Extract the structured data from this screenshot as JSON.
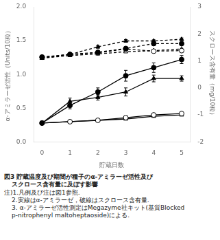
{
  "chart_data": {
    "type": "line",
    "title": [
      "図3 貯蔵温度及び期間が種子のα-アミラーゼ活性及び",
      "スクロース含有量に及ぼす影響"
    ],
    "annotations": [
      "注)1.凡例及び注は図1参照.",
      "2.実線はα-アミラーゼ，破線はスクロース含有量.",
      "3. α-アミラーゼ活性測定はMegazyme社キット(基質Blocked",
      "p-nitrophenyl maltoheptaoside)による."
    ],
    "x_label": "貯蔵日数",
    "y_label": "α-アミラーゼ活性（Units/10粒）",
    "y2_label": "スクロース含有量（mg/10粒）",
    "x": [
      0,
      1,
      2,
      3,
      4,
      5
    ],
    "xlim": [
      -0.3,
      5.3
    ],
    "xticks": [
      0,
      1,
      2,
      3,
      4,
      5
    ],
    "ylim": [
      0.0,
      2.0
    ],
    "yticks": [
      {
        "value": 0,
        "label": "0.0"
      },
      0.5,
      {
        "value": 1,
        "label": "1.0"
      },
      1.5,
      {
        "value": 2,
        "label": "2.0"
      }
    ],
    "y2lim": [
      -2.0,
      3.0
    ],
    "y2ticks": [
      -2,
      -1,
      0,
      1,
      2,
      3
    ],
    "grid": false,
    "series": [
      {
        "values": [
          0.28,
          0.54,
          0.74,
          0.98,
          1.1,
          1.22
        ],
        "errors": [
          0.02,
          0.05,
          0.06,
          0.08,
          0.07,
          0.06
        ],
        "color": "#000000",
        "marker": "circle",
        "line_style": "solid"
      },
      {
        "values": [
          0.28,
          0.6,
          0.66,
          0.74,
          0.94,
          0.94
        ],
        "errors": [
          0.02,
          0.05,
          0.04,
          0.06,
          0.05,
          0.04
        ],
        "color": "#000000",
        "marker": "triangle",
        "line_style": "solid"
      },
      {
        "values": [
          0.28,
          0.3,
          0.32,
          0.36,
          0.4,
          0.42
        ],
        "color": "#000000",
        "marker": "open_circle",
        "line_style": "solid"
      },
      {
        "values": [
          0.28,
          0.3,
          0.32,
          0.34,
          0.38,
          0.4
        ],
        "color": "#000000",
        "marker": "open_triangle",
        "line_style": "solid"
      },
      {
        "values": [
          1.14,
          1.24,
          1.32,
          1.46,
          1.64,
          1.64
        ],
        "errors": [
          0.02,
          0.04,
          0.04,
          0.06,
          0.05,
          0.04
        ],
        "color": "#000000",
        "marker": "circle",
        "line_style": "dashed",
        "axis": "y2"
      },
      {
        "values": [
          1.1,
          1.24,
          1.52,
          1.74,
          1.74,
          1.8
        ],
        "errors": [
          0.02,
          0.04,
          0.05,
          0.05,
          0.04,
          0.05
        ],
        "color": "#000000",
        "marker": "triangle",
        "line_style": "dashed",
        "axis": "y2"
      },
      {
        "values": [
          1.14,
          1.24,
          1.3,
          1.44,
          1.36,
          1.38
        ],
        "color": "#000000",
        "marker": "open_circle",
        "line_style": "dashed",
        "axis": "y2"
      },
      {
        "values": [
          1.1,
          1.2,
          1.26,
          1.34,
          1.38,
          1.44
        ],
        "color": "#000000",
        "marker": "open_triangle",
        "line_style": "dashed",
        "axis": "y2"
      }
    ]
  }
}
